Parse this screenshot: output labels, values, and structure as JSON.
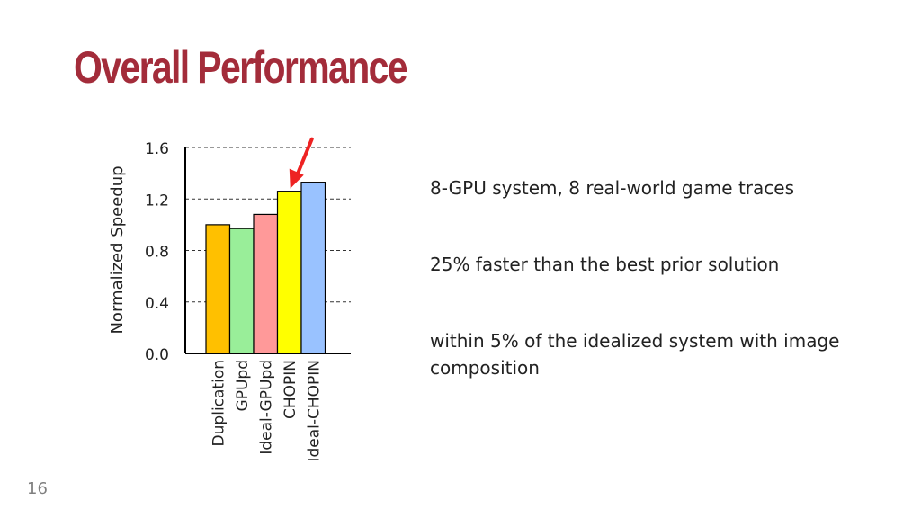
{
  "slide": {
    "title": "Overall Performance",
    "page_number": "16"
  },
  "bullets": [
    "8-GPU system, 8 real-world game traces",
    "25% faster than the best prior solution",
    "within 5% of the idealized system with image composition"
  ],
  "chart_data": {
    "type": "bar",
    "ylabel": "Normalized Speedup",
    "ylim": [
      0,
      1.6
    ],
    "yticks": [
      "0.0",
      "0.4",
      "0.8",
      "1.2",
      "1.6"
    ],
    "grid": true,
    "categories": [
      "Duplication",
      "GPUpd",
      "Ideal-GPUpd",
      "CHOPIN",
      "Ideal-CHOPIN"
    ],
    "values": [
      1.0,
      0.97,
      1.08,
      1.26,
      1.33
    ],
    "colors": [
      "#ffc000",
      "#99ee99",
      "#ff9999",
      "#ffff00",
      "#99c2ff"
    ],
    "highlight": {
      "category": "CHOPIN",
      "marker": "red-arrow",
      "color": "#ee2222"
    }
  }
}
